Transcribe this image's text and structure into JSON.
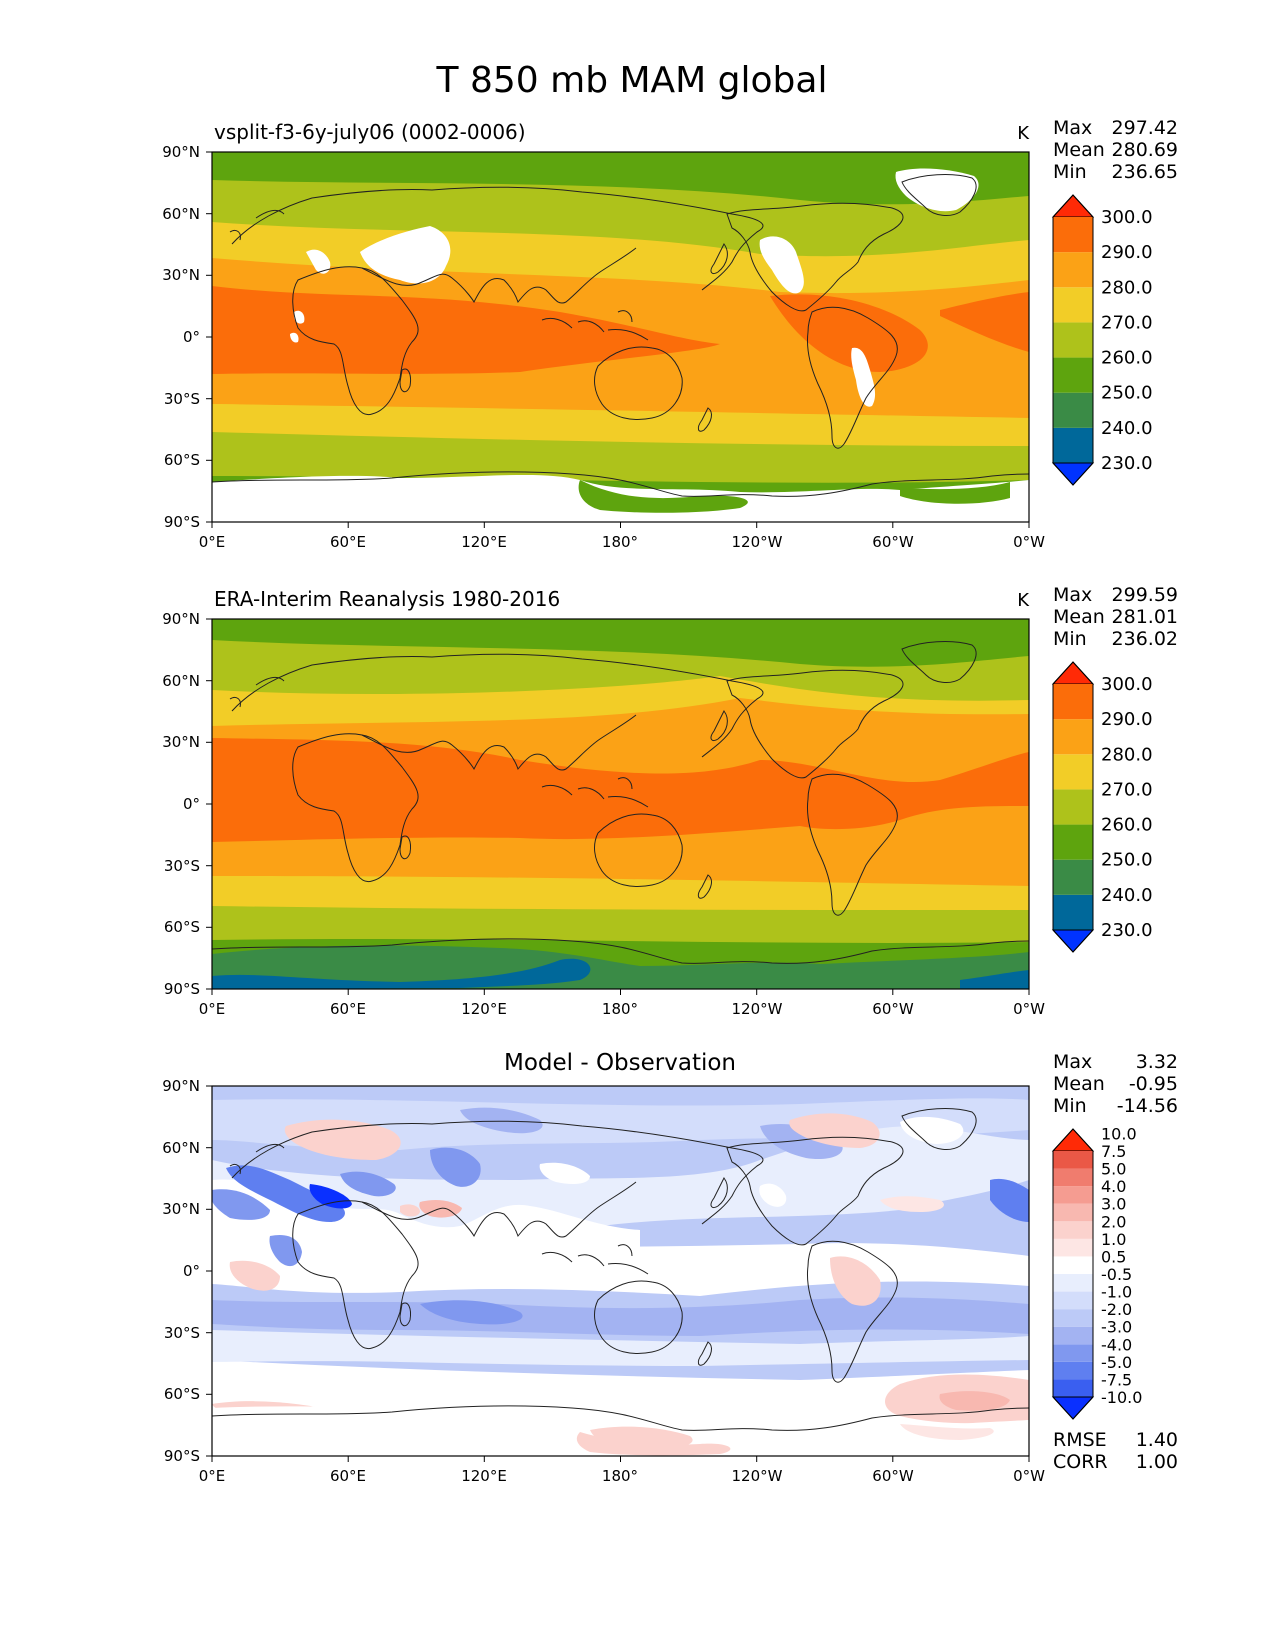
{
  "figure": {
    "title": "T 850 mb MAM global"
  },
  "axes": {
    "lat_ticks": [
      "90°N",
      "60°N",
      "30°N",
      "0°",
      "30°S",
      "60°S",
      "90°S"
    ],
    "lon_ticks": [
      "0°E",
      "60°E",
      "120°E",
      "180°",
      "120°W",
      "60°W",
      "0°W"
    ]
  },
  "colors": {
    "abs_levels": [
      "#0033ff",
      "#00689a",
      "#3a8b46",
      "#5ea40e",
      "#aec21b",
      "#f2cd27",
      "#fba216",
      "#fb6d0a",
      "#ff2a06"
    ],
    "diff_levels": [
      "#0a30ff",
      "#3a5ff0",
      "#5f7ff0",
      "#8098ef",
      "#a3b3f2",
      "#bccaf7",
      "#d3ddfb",
      "#e8eefd",
      "#ffffff",
      "#fde6e4",
      "#fbd2cd",
      "#f8b8b0",
      "#f59c91",
      "#f07c6e",
      "#ea5846",
      "#ff2a06"
    ],
    "missing": "#ffffff",
    "coast": "#222222"
  },
  "chart_data": [
    {
      "type": "heatmap",
      "title": "vsplit-f3-6y-july06 (0002-0006)",
      "units": "K",
      "stats": {
        "max_label": "Max",
        "max": "297.42",
        "mean_label": "Mean",
        "mean": "280.69",
        "min_label": "Min",
        "min": "236.65"
      },
      "colorbar": {
        "extend": "both",
        "ticks": [
          "230.0",
          "240.0",
          "250.0",
          "260.0",
          "270.0",
          "280.0",
          "290.0",
          "300.0"
        ]
      },
      "xlim": [
        0,
        360
      ],
      "ylim": [
        -90,
        90
      ]
    },
    {
      "type": "heatmap",
      "title": "ERA-Interim Reanalysis 1980-2016",
      "units": "K",
      "stats": {
        "max_label": "Max",
        "max": "299.59",
        "mean_label": "Mean",
        "mean": "281.01",
        "min_label": "Min",
        "min": "236.02"
      },
      "colorbar": {
        "extend": "both",
        "ticks": [
          "230.0",
          "240.0",
          "250.0",
          "260.0",
          "270.0",
          "280.0",
          "290.0",
          "300.0"
        ]
      },
      "xlim": [
        0,
        360
      ],
      "ylim": [
        -90,
        90
      ]
    },
    {
      "type": "heatmap",
      "title": "Model - Observation",
      "stats": {
        "max_label": "Max",
        "max": "3.32",
        "mean_label": "Mean",
        "mean": "-0.95",
        "min_label": "Min",
        "min": "-14.56"
      },
      "colorbar": {
        "extend": "both",
        "ticks": [
          "-10.0",
          "-7.5",
          "-5.0",
          "-4.0",
          "-3.0",
          "-2.0",
          "-1.0",
          "-0.5",
          "0.5",
          "1.0",
          "2.0",
          "3.0",
          "4.0",
          "5.0",
          "7.5",
          "10.0"
        ]
      },
      "metrics": {
        "rmse_label": "RMSE",
        "rmse": "1.40",
        "corr_label": "CORR",
        "corr": "1.00"
      },
      "xlim": [
        0,
        360
      ],
      "ylim": [
        -90,
        90
      ]
    }
  ]
}
